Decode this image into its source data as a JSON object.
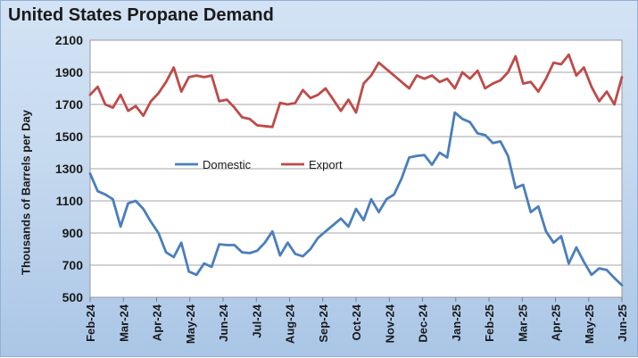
{
  "chart_data": {
    "type": "line",
    "title": "United States Propane Demand",
    "ylabel": "Thousands of Barrels per Day",
    "xlabel": "",
    "ylim": [
      500,
      2100
    ],
    "yticks": [
      500,
      700,
      900,
      1100,
      1300,
      1500,
      1700,
      1900,
      2100
    ],
    "x_tick_labels": [
      "Feb-24",
      "Mar-24",
      "Apr-24",
      "May-24",
      "Jun-24",
      "Jul-24",
      "Aug-24",
      "Sep-24",
      "Oct-24",
      "Nov-24",
      "Dec-24",
      "Jan-25",
      "Feb-25",
      "Mar-25",
      "Apr-25",
      "May-25",
      "Jun-25"
    ],
    "grid": "horizontal",
    "legend_position": "inside-left",
    "series": [
      {
        "name": "Domestic",
        "color": "#4a7ebb",
        "values": [
          1270,
          1160,
          1140,
          1110,
          940,
          1085,
          1100,
          1050,
          970,
          900,
          780,
          750,
          840,
          660,
          640,
          710,
          690,
          830,
          825,
          825,
          780,
          775,
          790,
          840,
          910,
          760,
          840,
          770,
          755,
          800,
          870,
          910,
          950,
          990,
          940,
          1050,
          980,
          1110,
          1030,
          1110,
          1140,
          1240,
          1370,
          1380,
          1385,
          1325,
          1400,
          1370,
          1650,
          1610,
          1590,
          1520,
          1510,
          1460,
          1470,
          1380,
          1180,
          1200,
          1030,
          1065,
          910,
          840,
          880,
          710,
          810,
          720,
          640,
          680,
          670,
          620,
          575
        ]
      },
      {
        "name": "Export",
        "color": "#be4b48",
        "values": [
          1760,
          1810,
          1700,
          1680,
          1760,
          1660,
          1690,
          1630,
          1720,
          1770,
          1840,
          1930,
          1780,
          1870,
          1880,
          1870,
          1880,
          1720,
          1730,
          1680,
          1620,
          1610,
          1570,
          1565,
          1560,
          1710,
          1700,
          1710,
          1790,
          1740,
          1760,
          1800,
          1730,
          1660,
          1730,
          1650,
          1830,
          1880,
          1960,
          1920,
          1880,
          1840,
          1800,
          1880,
          1860,
          1880,
          1840,
          1860,
          1800,
          1900,
          1860,
          1910,
          1800,
          1830,
          1850,
          1900,
          2000,
          1830,
          1840,
          1780,
          1860,
          1960,
          1950,
          2010,
          1880,
          1930,
          1810,
          1720,
          1780,
          1700,
          1870
        ]
      }
    ]
  }
}
